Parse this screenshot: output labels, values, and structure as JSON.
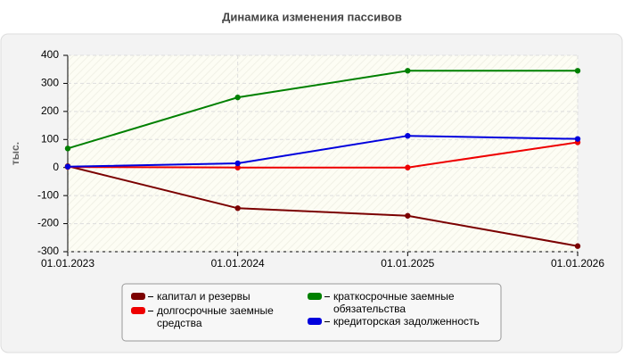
{
  "chart_data": {
    "type": "line",
    "title": "Динамика изменения пассивов",
    "y_label": "тыс.",
    "categories": [
      "01.01.2023",
      "01.01.2024",
      "01.01.2025",
      "01.01.2026"
    ],
    "series": [
      {
        "name": "капитал и резервы",
        "color": "#7b0000",
        "values": [
          5,
          -145,
          -172,
          -280
        ]
      },
      {
        "name": "долгосрочные заемные средства",
        "color": "#ee0000",
        "values": [
          2,
          0,
          0,
          90
        ]
      },
      {
        "name": "краткосрочные заемные обязательства",
        "color": "#008000",
        "values": [
          68,
          250,
          345,
          345
        ]
      },
      {
        "name": "кредиторская задолженность",
        "color": "#0000dd",
        "values": [
          3,
          15,
          113,
          102
        ]
      }
    ],
    "ylim": [
      -300,
      400
    ],
    "yticks": [
      -300,
      -200,
      -100,
      0,
      100,
      200,
      300,
      400
    ],
    "grid": true
  }
}
